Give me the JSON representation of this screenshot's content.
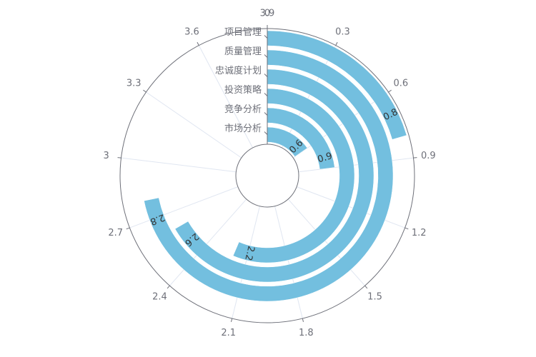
{
  "chart_data": {
    "type": "polar-bar",
    "title": "",
    "angle_axis": {
      "min": 0,
      "max": 3.9,
      "ticks": [
        "0",
        "0.3",
        "0.6",
        "0.9",
        "1.2",
        "1.5",
        "1.8",
        "2.1",
        "2.4",
        "2.7",
        "3",
        "3.3",
        "3.6",
        "3.9"
      ],
      "direction": "clockwise",
      "start": "top"
    },
    "categories": [
      "市场分析",
      "竞争分析",
      "投资策略",
      "忠诚度计划",
      "质量管理",
      "项目管理"
    ],
    "values": [
      0.6,
      0.9,
      2.2,
      2.6,
      2.8,
      0.8
    ],
    "series": [
      {
        "values": [
          0.6,
          0.9,
          2.2,
          2.6,
          2.8,
          0.8
        ]
      }
    ],
    "data_labels": [
      "0.6",
      "0.9",
      "2.2",
      "2.6",
      "2.8",
      "0.8"
    ],
    "colors": {
      "bar": "#73bfdf",
      "axis": "#6e7079",
      "split": "#e0e6f1",
      "label": "#333333"
    },
    "grid": true,
    "legend": "none"
  }
}
